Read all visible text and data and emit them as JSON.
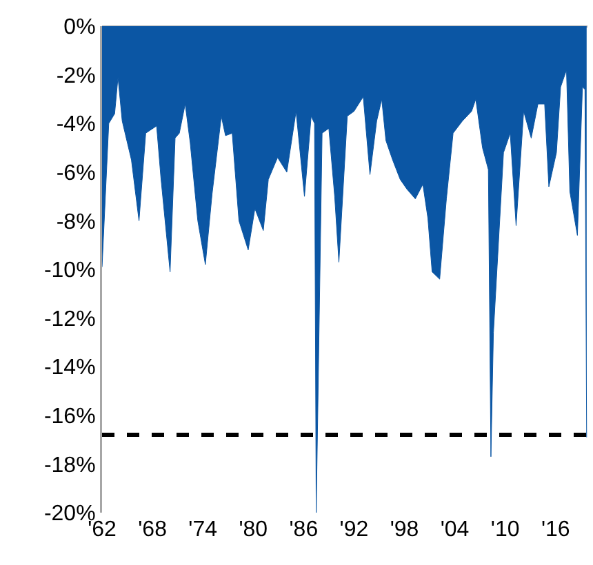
{
  "chart_data": {
    "type": "area",
    "x": [
      1962.0,
      1962.8,
      1963.5,
      1963.9,
      1964.4,
      1965.5,
      1966.4,
      1967.2,
      1968.5,
      1969.0,
      1970.1,
      1970.7,
      1971.2,
      1971.9,
      1972.5,
      1973.4,
      1974.3,
      1975.1,
      1976.2,
      1976.7,
      1977.5,
      1978.3,
      1979.4,
      1980.2,
      1981.2,
      1981.8,
      1982.9,
      1984.0,
      1985.1,
      1986.1,
      1986.9,
      1987.3,
      1987.5,
      1988.2,
      1989.0,
      1989.7,
      1990.2,
      1991.2,
      1992.0,
      1993.1,
      1993.9,
      1994.7,
      1995.3,
      1995.8,
      1996.6,
      1997.5,
      1998.3,
      1999.3,
      2000.2,
      2000.8,
      2001.3,
      2002.2,
      2003.0,
      2003.8,
      2004.9,
      2006.0,
      2006.5,
      2007.3,
      2008.0,
      2008.3,
      2008.6,
      2009.8,
      2010.6,
      2011.3,
      2012.2,
      2013.1,
      2013.9,
      2014.7,
      2015.2,
      2016.1,
      2016.6,
      2017.3,
      2017.7,
      2018.6,
      2019.2,
      2019.5,
      2019.7
    ],
    "values": [
      -9.9,
      -4.0,
      -3.6,
      -2.1,
      -3.9,
      -5.5,
      -8.0,
      -4.4,
      -4.1,
      -6.2,
      -10.1,
      -4.6,
      -4.4,
      -3.2,
      -4.8,
      -8.0,
      -9.8,
      -6.9,
      -3.7,
      -4.5,
      -4.4,
      -8.0,
      -9.2,
      -7.5,
      -8.4,
      -6.3,
      -5.4,
      -6.0,
      -3.5,
      -7.0,
      -3.7,
      -4.0,
      -20.0,
      -4.4,
      -4.2,
      -7.0,
      -9.7,
      -3.7,
      -3.5,
      -2.9,
      -6.1,
      -3.9,
      -3.0,
      -4.7,
      -5.5,
      -6.3,
      -6.7,
      -7.1,
      -6.5,
      -7.9,
      -10.1,
      -10.4,
      -7.1,
      -4.4,
      -3.9,
      -3.5,
      -3.0,
      -5.0,
      -5.9,
      -17.7,
      -12.6,
      -5.2,
      -4.4,
      -8.2,
      -3.5,
      -4.6,
      -3.2,
      -3.2,
      -6.6,
      -5.2,
      -2.5,
      -1.8,
      -6.8,
      -8.6,
      -2.5,
      -2.6,
      -16.9
    ],
    "color": "#0b56a4",
    "xlim": [
      1962,
      2019.8
    ],
    "xticks": [
      {
        "value": 1962,
        "label": "'62"
      },
      {
        "value": 1968,
        "label": "'68"
      },
      {
        "value": 1974,
        "label": "'74"
      },
      {
        "value": 1980,
        "label": "'80"
      },
      {
        "value": 1986,
        "label": "'86"
      },
      {
        "value": 1992,
        "label": "'92"
      },
      {
        "value": 1998,
        "label": "'98"
      },
      {
        "value": 2004,
        "label": "'04"
      },
      {
        "value": 2010,
        "label": "'10"
      },
      {
        "value": 2016,
        "label": "'16"
      }
    ],
    "ylim": [
      -20,
      0
    ],
    "yticks": [
      {
        "value": 0,
        "label": "0%"
      },
      {
        "value": -2,
        "label": "-2%"
      },
      {
        "value": -4,
        "label": "-4%"
      },
      {
        "value": -6,
        "label": "-6%"
      },
      {
        "value": -8,
        "label": "-8%"
      },
      {
        "value": -10,
        "label": "-10%"
      },
      {
        "value": -12,
        "label": "-12%"
      },
      {
        "value": -14,
        "label": "-14%"
      },
      {
        "value": -16,
        "label": "-16%"
      },
      {
        "value": -18,
        "label": "-18%"
      },
      {
        "value": -20,
        "label": "-20%"
      }
    ],
    "ref_lines": [
      {
        "axis": "y",
        "value": -16.8,
        "color": "#000000",
        "line_style": "dashed"
      }
    ]
  }
}
